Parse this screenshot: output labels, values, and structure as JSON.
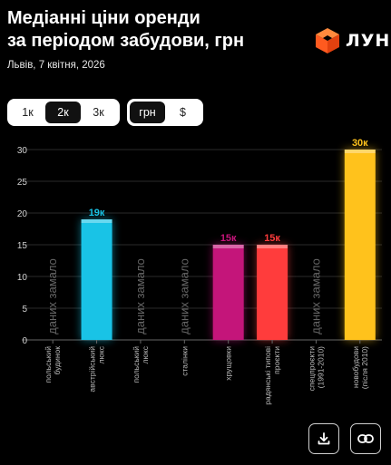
{
  "header": {
    "title_line1": "Медіанні ціни оренди",
    "title_line2": "за періодом забудови, грн",
    "subtitle": "Львів, 7 квітня, 2026"
  },
  "logo": {
    "text": "ЛУН",
    "icon": "lun-cube-icon",
    "color": "#ff5a1f"
  },
  "controls": {
    "zoom_options": [
      "1к",
      "2к",
      "3к"
    ],
    "zoom_selected": "2к",
    "currency_options": [
      "грн",
      "$"
    ],
    "currency_selected": "грн"
  },
  "actions": {
    "download_icon": "download-icon",
    "link_icon": "link-icon"
  },
  "chart_data": {
    "type": "bar",
    "title": "",
    "xlabel": "",
    "ylabel": "",
    "ylim": [
      0,
      30
    ],
    "yticks": [
      0,
      5,
      10,
      15,
      20,
      25,
      30
    ],
    "grid": true,
    "no_data_label": "даних замало",
    "categories": [
      {
        "lines": [
          "польський",
          "будинок"
        ],
        "value": null,
        "label": "",
        "color": ""
      },
      {
        "lines": [
          "австрійський",
          "люкс"
        ],
        "value": 19,
        "label": "19к",
        "color": "#19c3e6"
      },
      {
        "lines": [
          "польський",
          "люкс"
        ],
        "value": null,
        "label": "",
        "color": ""
      },
      {
        "lines": [
          "сталінки"
        ],
        "value": null,
        "label": "",
        "color": ""
      },
      {
        "lines": [
          "хрущовки"
        ],
        "value": 15,
        "label": "15к",
        "color": "#c4157a"
      },
      {
        "lines": [
          "радянські типові",
          "проєкти"
        ],
        "value": 15,
        "label": "15к",
        "color": "#ff3c3c"
      },
      {
        "lines": [
          "спецпроєкти",
          "(1991-2010)"
        ],
        "value": null,
        "label": "",
        "color": ""
      },
      {
        "lines": [
          "новобудови",
          "(після 2010)"
        ],
        "value": 30,
        "label": "30к",
        "color": "#ffc21c"
      }
    ]
  }
}
